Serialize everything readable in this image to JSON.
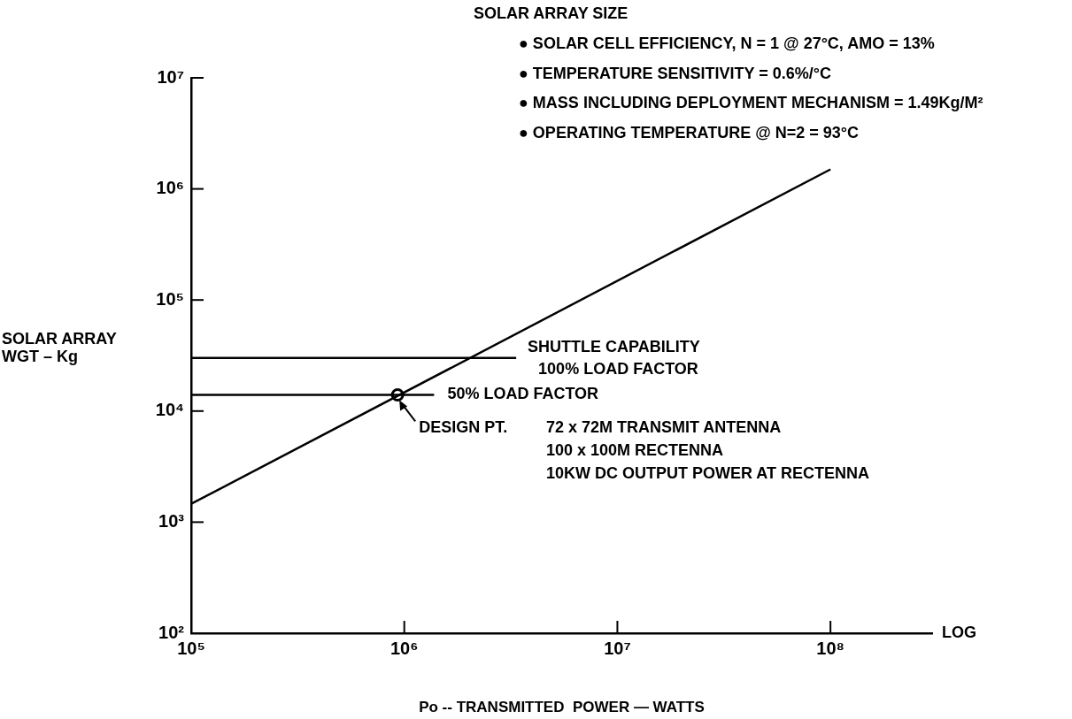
{
  "chart_data": {
    "type": "line",
    "title": "SOLAR ARRAY SIZE",
    "xlabel": "Po -- TRANSMITTED  POWER — WATTS",
    "ylabel": "SOLAR ARRAY\nWGT – Kg",
    "log": "xy",
    "grid": false,
    "legend": false,
    "xlim": [
      100000,
      300000000
    ],
    "xticks": [
      {
        "value": 100000,
        "label": "10⁵"
      },
      {
        "value": 1000000,
        "label": "10⁶"
      },
      {
        "value": 10000000,
        "label": "10⁷"
      },
      {
        "value": 100000000,
        "label": "10⁸"
      }
    ],
    "ylim": [
      100,
      10000000
    ],
    "yticks": [
      {
        "value": 100,
        "label": "10²"
      },
      {
        "value": 1000,
        "label": "10³"
      },
      {
        "value": 10000,
        "label": "10⁴"
      },
      {
        "value": 100000,
        "label": "10⁵"
      },
      {
        "value": 1000000,
        "label": "10⁶"
      },
      {
        "value": 10000000,
        "label": "10⁷"
      }
    ],
    "series": [
      {
        "color": "#000000",
        "x": [
          100000,
          100000000
        ],
        "values": [
          1460,
          1500000
        ]
      },
      {
        "color": "#000000",
        "x": [
          100000,
          3350000
        ],
        "values": [
          30000,
          30000
        ]
      },
      {
        "color": "#000000",
        "x": [
          100000,
          1380000
        ],
        "values": [
          14000,
          14000
        ]
      },
      {
        "type": "scatter",
        "color": "#000000",
        "marker": "circle",
        "x": [
          930000
        ],
        "values": [
          14000
        ]
      }
    ],
    "annotations": [
      "● SOLAR CELL EFFICIENCY, N = 1 @ 27°C, AMO = 13%",
      "● TEMPERATURE SENSITIVITY = 0.6%/°C",
      "● MASS INCLUDING DEPLOYMENT MECHANISM = 1.49Kg/M²",
      "● OPERATING TEMPERATURE @ N=2 = 93°C",
      {
        "text": "SHUTTLE CAPABILITY",
        "x": 3350000,
        "y": 30000
      },
      {
        "text": "100% LOAD FACTOR",
        "x": 3350000,
        "y": 30000
      },
      {
        "text": "50% LOAD FACTOR",
        "x": 1380000,
        "y": 14000
      },
      {
        "text": "DESIGN PT.",
        "x": 930000,
        "y": 14000
      },
      "72 x 72M TRANSMIT ANTENNA",
      "100 x 100M RECTENNA",
      "10KW DC OUTPUT POWER AT RECTENNA",
      "LOG"
    ]
  }
}
